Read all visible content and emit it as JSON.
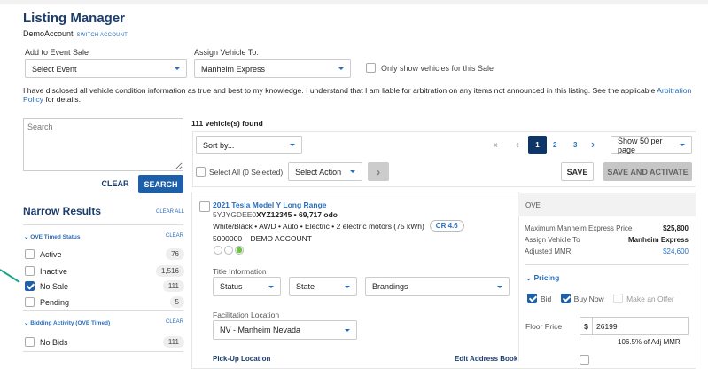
{
  "header": {
    "title": "Listing Manager",
    "account": "DemoAccount",
    "switch_account": "SWITCH ACCOUNT"
  },
  "event": {
    "label": "Add to Event Sale",
    "value": "Select Event"
  },
  "assign": {
    "label": "Assign Vehicle To:",
    "value": "Manheim Express"
  },
  "only_show": "Only show vehicles for this Sale",
  "disclaimer": {
    "text": "I have disclosed all vehicle condition information as true and best to my knowledge. I understand that I am liable for arbitration on any items not announced in this listing. See the applicable ",
    "link": "Arbitration Policy",
    "suffix": " for details."
  },
  "search": {
    "placeholder": "Search",
    "clear": "CLEAR",
    "search": "SEARCH"
  },
  "filters": {
    "title": "Narrow Results",
    "clear_all": "CLEAR ALL",
    "sections": [
      {
        "title": "OVE Timed Status",
        "clear": "CLEAR",
        "items": [
          {
            "label": "Active",
            "count": "76",
            "checked": false
          },
          {
            "label": "Inactive",
            "count": "1,516",
            "checked": false
          },
          {
            "label": "No Sale",
            "count": "111",
            "checked": true
          },
          {
            "label": "Pending",
            "count": "5",
            "checked": false
          }
        ]
      },
      {
        "title": "Bidding Activity (OVE Timed)",
        "clear": "CLEAR",
        "items": [
          {
            "label": "No Bids",
            "count": "111",
            "checked": false
          }
        ]
      }
    ]
  },
  "results": {
    "count": "111 vehicle(s) found",
    "sort": "Sort by...",
    "pages": [
      "1",
      "2",
      "3"
    ],
    "current_page": "1",
    "per_page": "Show 50 per page",
    "select_all": "Select All (0 Selected)",
    "select_action": "Select Action",
    "save": "SAVE",
    "save_activate": "SAVE AND ACTIVATE"
  },
  "vehicle": {
    "title": "2021 Tesla Model Y Long Range",
    "vin_prefix": "5YJYGDEE0",
    "vin_suffix": "XYZ12345",
    "odo": " • 69,717 odo",
    "specs": "White/Black • AWD • Auto • Electric • 2 electric motors (75 kWh)",
    "cr": "CR 4.6",
    "account_no": "5000000",
    "account_name": "DEMO ACCOUNT",
    "title_info": "Title Information",
    "status": "Status",
    "state": "State",
    "brandings": "Brandings",
    "facilitation_label": "Facilitation Location",
    "facilitation": "NV - Manheim Nevada",
    "pickup": "Pick-Up Location",
    "edit_address": "Edit Address Book"
  },
  "ove": {
    "header": "OVE",
    "max_price_label": "Maximum Manheim Express Price",
    "max_price": "$25,800",
    "assign_label": "Assign Vehicle To",
    "assign": "Manheim Express",
    "mmr_label": "Adjusted MMR",
    "mmr": "$24,600",
    "pricing": "Pricing",
    "bid": "Bid",
    "buy_now": "Buy Now",
    "make_offer": "Make an Offer",
    "floor_label": "Floor Price",
    "currency": "$",
    "floor": "26199",
    "floor_pct": "106.5% of Adj MMR"
  },
  "colors": {
    "brand": "#1b3d6e",
    "accent": "#2a6ebb",
    "page_active": "#0f3466",
    "annotation_arrow": "#1aa38a"
  }
}
